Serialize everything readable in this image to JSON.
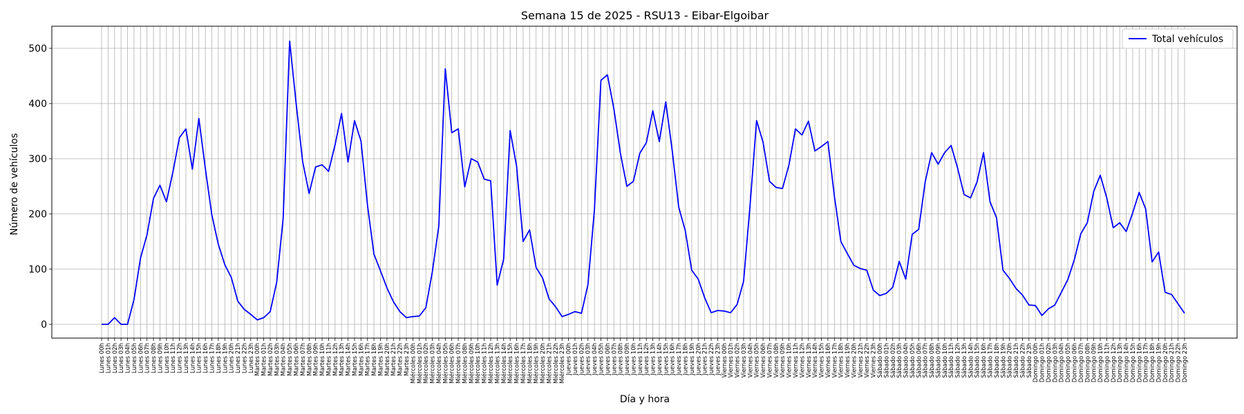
{
  "chart_data": {
    "type": "line",
    "title": "Semana 15 de 2025 - RSU13 - Eibar-Elgoibar",
    "xlabel": "Día y hora",
    "ylabel": "Número de vehículos",
    "ylim": [
      -25,
      540
    ],
    "yticks": [
      0,
      100,
      200,
      300,
      400,
      500
    ],
    "grid": true,
    "legend_position": "top-right",
    "categories": [
      "Lunes 00h",
      "Lunes 01h",
      "Lunes 02h",
      "Lunes 03h",
      "Lunes 04h",
      "Lunes 05h",
      "Lunes 06h",
      "Lunes 07h",
      "Lunes 08h",
      "Lunes 09h",
      "Lunes 10h",
      "Lunes 11h",
      "Lunes 12h",
      "Lunes 13h",
      "Lunes 14h",
      "Lunes 15h",
      "Lunes 16h",
      "Lunes 17h",
      "Lunes 18h",
      "Lunes 19h",
      "Lunes 20h",
      "Lunes 21h",
      "Lunes 22h",
      "Lunes 23h",
      "Martes 00h",
      "Martes 01h",
      "Martes 02h",
      "Martes 03h",
      "Martes 04h",
      "Martes 05h",
      "Martes 06h",
      "Martes 07h",
      "Martes 08h",
      "Martes 09h",
      "Martes 10h",
      "Martes 11h",
      "Martes 12h",
      "Martes 13h",
      "Martes 14h",
      "Martes 15h",
      "Martes 16h",
      "Martes 17h",
      "Martes 18h",
      "Martes 19h",
      "Martes 20h",
      "Martes 21h",
      "Martes 22h",
      "Martes 23h",
      "Miércoles 00h",
      "Miércoles 01h",
      "Miércoles 02h",
      "Miércoles 03h",
      "Miércoles 04h",
      "Miércoles 05h",
      "Miércoles 06h",
      "Miércoles 07h",
      "Miércoles 08h",
      "Miércoles 09h",
      "Miércoles 10h",
      "Miércoles 11h",
      "Miércoles 12h",
      "Miércoles 13h",
      "Miércoles 14h",
      "Miércoles 15h",
      "Miércoles 16h",
      "Miércoles 17h",
      "Miércoles 18h",
      "Miércoles 19h",
      "Miércoles 20h",
      "Miércoles 21h",
      "Miércoles 22h",
      "Miércoles 23h",
      "Jueves 00h",
      "Jueves 01h",
      "Jueves 02h",
      "Jueves 03h",
      "Jueves 04h",
      "Jueves 05h",
      "Jueves 06h",
      "Jueves 07h",
      "Jueves 08h",
      "Jueves 09h",
      "Jueves 10h",
      "Jueves 11h",
      "Jueves 12h",
      "Jueves 13h",
      "Jueves 14h",
      "Jueves 15h",
      "Jueves 16h",
      "Jueves 17h",
      "Jueves 18h",
      "Jueves 19h",
      "Jueves 20h",
      "Jueves 21h",
      "Jueves 22h",
      "Jueves 23h",
      "Viernes 00h",
      "Viernes 01h",
      "Viernes 02h",
      "Viernes 03h",
      "Viernes 04h",
      "Viernes 05h",
      "Viernes 06h",
      "Viernes 07h",
      "Viernes 08h",
      "Viernes 09h",
      "Viernes 10h",
      "Viernes 11h",
      "Viernes 12h",
      "Viernes 13h",
      "Viernes 14h",
      "Viernes 15h",
      "Viernes 16h",
      "Viernes 17h",
      "Viernes 18h",
      "Viernes 19h",
      "Viernes 20h",
      "Viernes 21h",
      "Viernes 22h",
      "Viernes 23h",
      "Sábado 00h",
      "Sábado 01h",
      "Sábado 02h",
      "Sábado 03h",
      "Sábado 04h",
      "Sábado 05h",
      "Sábado 06h",
      "Sábado 07h",
      "Sábado 08h",
      "Sábado 09h",
      "Sábado 10h",
      "Sábado 11h",
      "Sábado 12h",
      "Sábado 13h",
      "Sábado 14h",
      "Sábado 15h",
      "Sábado 16h",
      "Sábado 17h",
      "Sábado 18h",
      "Sábado 19h",
      "Sábado 20h",
      "Sábado 21h",
      "Sábado 22h",
      "Sábado 23h",
      "Domingo 00h",
      "Domingo 01h",
      "Domingo 02h",
      "Domingo 03h",
      "Domingo 04h",
      "Domingo 05h",
      "Domingo 06h",
      "Domingo 07h",
      "Domingo 08h",
      "Domingo 09h",
      "Domingo 10h",
      "Domingo 11h",
      "Domingo 12h",
      "Domingo 13h",
      "Domingo 14h",
      "Domingo 15h",
      "Domingo 16h",
      "Domingo 17h",
      "Domingo 18h",
      "Domingo 19h",
      "Domingo 20h",
      "Domingo 21h",
      "Domingo 22h",
      "Domingo 23h"
    ],
    "series": [
      {
        "name": "Total vehículos",
        "color": "#0000ff",
        "values": [
          0,
          0,
          12,
          0,
          0,
          45,
          120,
          162,
          228,
          252,
          222,
          276,
          338,
          354,
          281,
          373,
          282,
          198,
          145,
          108,
          85,
          42,
          27,
          18,
          8,
          12,
          23,
          76,
          192,
          513,
          400,
          295,
          237,
          285,
          289,
          277,
          325,
          382,
          294,
          369,
          332,
          216,
          127,
          97,
          66,
          41,
          23,
          12,
          14,
          15,
          30,
          95,
          178,
          463,
          347,
          354,
          249,
          300,
          294,
          263,
          260,
          71,
          118,
          351,
          286,
          150,
          171,
          103,
          84,
          46,
          32,
          14,
          18,
          23,
          20,
          72,
          208,
          442,
          452,
          390,
          310,
          250,
          259,
          310,
          329,
          387,
          331,
          403,
          314,
          212,
          170,
          98,
          82,
          48,
          21,
          25,
          24,
          21,
          36,
          78,
          216,
          369,
          330,
          259,
          248,
          246,
          289,
          354,
          343,
          368,
          314,
          322,
          331,
          232,
          150,
          128,
          107,
          101,
          98,
          62,
          52,
          56,
          67,
          114,
          82,
          163,
          172,
          258,
          311,
          290,
          311,
          324,
          283,
          235,
          229,
          258,
          311,
          222,
          193,
          98,
          83,
          65,
          53,
          35,
          34,
          16,
          28,
          35,
          58,
          81,
          117,
          164,
          184,
          241,
          270,
          229,
          175,
          184,
          168,
          202,
          239,
          209,
          113,
          131,
          58,
          54,
          37,
          20
        ]
      }
    ]
  }
}
